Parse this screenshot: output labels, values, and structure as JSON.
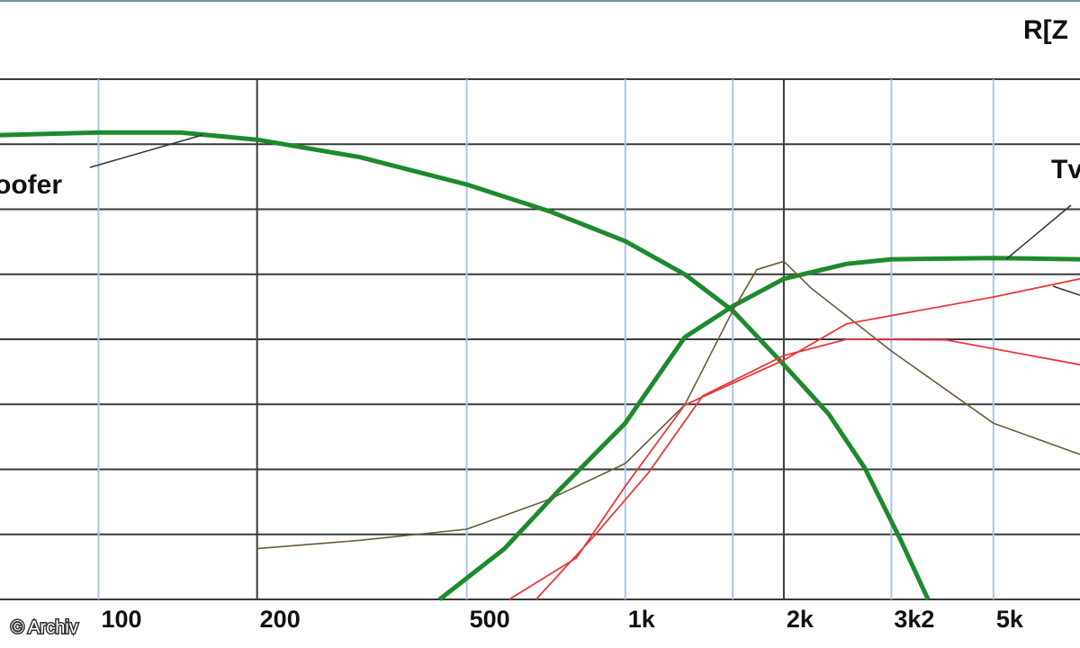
{
  "chart_data": {
    "type": "line",
    "corner_label": "R[Z",
    "credit": "© Archiv",
    "log_x": true,
    "xlim": [
      65,
      7300
    ],
    "ylim": [
      0,
      8
    ],
    "xticks": [
      {
        "value": 100,
        "label": "100",
        "dark": false
      },
      {
        "value": 200,
        "label": "200",
        "dark": true
      },
      {
        "value": 500,
        "label": "500",
        "dark": false
      },
      {
        "value": 1000,
        "label": "1k",
        "dark": false
      },
      {
        "value": 2000,
        "label": "2k",
        "dark": true
      },
      {
        "value": 3200,
        "label": "3k2",
        "dark": false
      },
      {
        "value": 5000,
        "label": "5k",
        "dark": false
      }
    ],
    "xminor": [
      1600
    ],
    "ygrid": [
      0,
      1,
      2,
      3,
      4,
      5,
      6,
      7,
      8
    ],
    "grid_color": "#3a3a3a",
    "minor_grid_color": "#a9c4e6",
    "series": [
      {
        "color": "#1e8a2e",
        "width": 5,
        "x": [
          65,
          100,
          143,
          200,
          314,
          500,
          718,
          1000,
          1297,
          1600,
          2000,
          2434,
          2850,
          3335,
          3757
        ],
        "values": [
          7.14,
          7.18,
          7.18,
          7.07,
          6.8,
          6.38,
          5.97,
          5.51,
          5.0,
          4.44,
          3.61,
          2.85,
          2.02,
          0.91,
          0
        ]
      },
      {
        "color": "#1e8a2e",
        "width": 5,
        "x": [
          444,
          590,
          747,
          1000,
          1297,
          1600,
          2000,
          2633,
          3200,
          5000,
          7300
        ],
        "values": [
          0,
          0.78,
          1.67,
          2.71,
          4.03,
          4.51,
          4.93,
          5.16,
          5.23,
          5.25,
          5.23
        ]
      },
      {
        "color": "#6b5a3a",
        "width": 1.6,
        "x": [
          200,
          314,
          500,
          718,
          1000,
          1297,
          1600,
          1776,
          2000,
          2250,
          3200,
          5000,
          7300
        ],
        "values": [
          0.78,
          0.91,
          1.08,
          1.54,
          2.09,
          2.99,
          4.44,
          5.07,
          5.2,
          4.79,
          3.82,
          2.71,
          2.23
        ]
      },
      {
        "color": "#e8393b",
        "width": 1.8,
        "x": [
          602,
          808,
          1000,
          1297,
          2000,
          2633,
          5000,
          7300
        ],
        "values": [
          0,
          0.64,
          1.74,
          2.99,
          3.68,
          4.24,
          4.65,
          4.93
        ]
      },
      {
        "color": "#e8393b",
        "width": 1.8,
        "x": [
          677,
          874,
          1107,
          1403,
          2000,
          2633,
          4063,
          7300
        ],
        "values": [
          0,
          0.98,
          1.95,
          3.13,
          3.75,
          4.0,
          3.99,
          3.61
        ]
      }
    ],
    "annotations": [
      {
        "text": "oofer"
      },
      {
        "text": "Tv"
      }
    ]
  }
}
